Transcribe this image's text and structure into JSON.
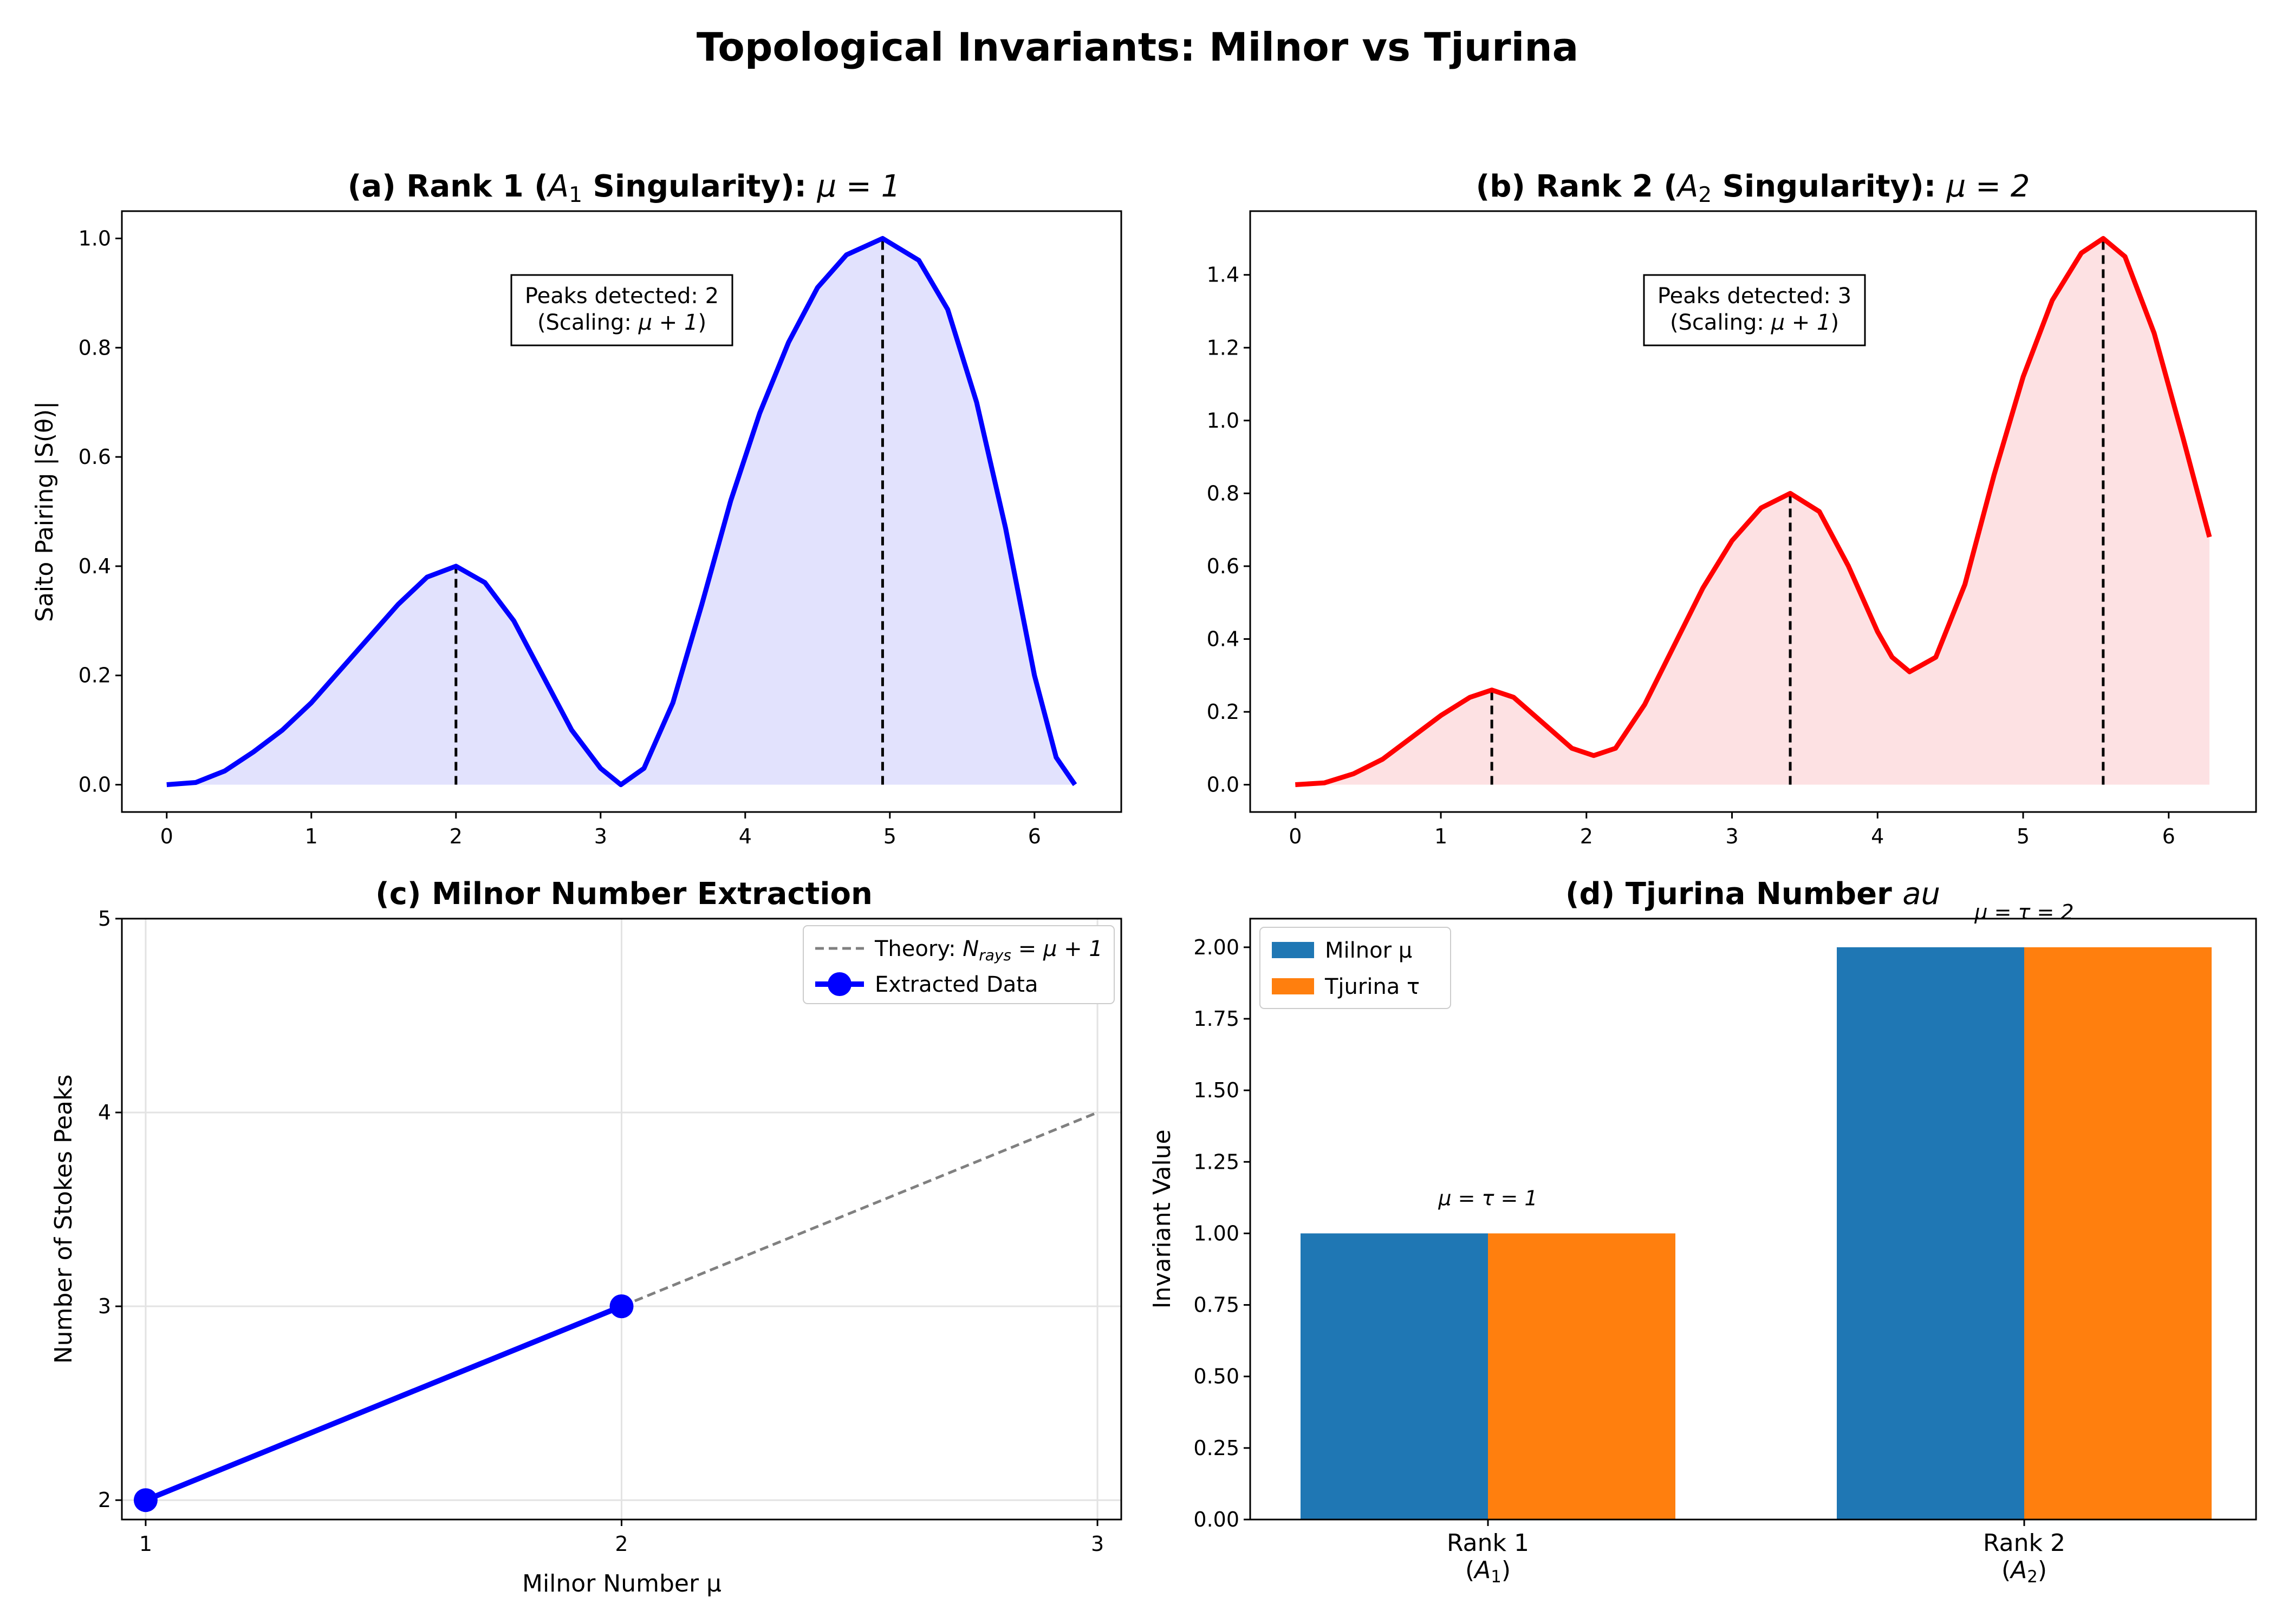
{
  "figure": {
    "title": "Topological Invariants: Milnor vs Tjurina"
  },
  "chart_data": [
    {
      "id": "a",
      "type": "line",
      "title": "(a) Rank 1 (A₁ Singularity): μ = 1",
      "title_parts": {
        "pre": "(a) Rank 1 (",
        "sym": "A",
        "sub": "1",
        "mid": " Singularity): ",
        "eq": "μ = 1"
      },
      "ylabel": "Saito Pairing |S(θ)|",
      "xlim": [
        -0.31,
        6.6
      ],
      "ylim": [
        -0.05,
        1.05
      ],
      "xticks": [
        0,
        1,
        2,
        3,
        4,
        5,
        6
      ],
      "yticks": [
        0.0,
        0.2,
        0.4,
        0.6,
        0.8,
        1.0
      ],
      "ytick_decimals": 1,
      "series": [
        {
          "name": "|S(θ)|",
          "color": "#0000ff",
          "fill": "#e2e2fd",
          "x": [
            0,
            0.2,
            0.4,
            0.6,
            0.8,
            1.0,
            1.2,
            1.4,
            1.6,
            1.8,
            2.0,
            2.2,
            2.4,
            2.6,
            2.8,
            3.0,
            3.14,
            3.3,
            3.5,
            3.7,
            3.9,
            4.1,
            4.3,
            4.5,
            4.7,
            4.95,
            5.2,
            5.4,
            5.6,
            5.8,
            6.0,
            6.15,
            6.28
          ],
          "y": [
            0.0,
            0.004,
            0.025,
            0.06,
            0.1,
            0.15,
            0.21,
            0.27,
            0.33,
            0.38,
            0.4,
            0.37,
            0.3,
            0.2,
            0.1,
            0.03,
            0.0,
            0.03,
            0.15,
            0.33,
            0.52,
            0.68,
            0.81,
            0.91,
            0.97,
            1.0,
            0.96,
            0.87,
            0.7,
            0.47,
            0.2,
            0.05,
            0.0
          ]
        }
      ],
      "peaks": [
        {
          "x": 2.0,
          "y": 0.4
        },
        {
          "x": 4.95,
          "y": 1.0
        }
      ],
      "annotation": {
        "line1": "Peaks detected: 2",
        "line2_pre": "(Scaling: ",
        "line2_eq": "μ + 1",
        "line2_post": ")"
      }
    },
    {
      "id": "b",
      "type": "line",
      "title": "(b) Rank 2 (A₂ Singularity): μ = 2",
      "title_parts": {
        "pre": "(b) Rank 2 (",
        "sym": "A",
        "sub": "2",
        "mid": " Singularity): ",
        "eq": "μ = 2"
      },
      "ylabel": "",
      "xlim": [
        -0.31,
        6.6
      ],
      "ylim": [
        -0.075,
        1.575
      ],
      "xticks": [
        0,
        1,
        2,
        3,
        4,
        5,
        6
      ],
      "yticks": [
        0.0,
        0.2,
        0.4,
        0.6,
        0.8,
        1.0,
        1.2,
        1.4
      ],
      "ytick_decimals": 1,
      "series": [
        {
          "name": "|S(θ)|",
          "color": "#ff0000",
          "fill": "#fde1e3",
          "x": [
            0,
            0.2,
            0.4,
            0.6,
            0.8,
            1.0,
            1.2,
            1.35,
            1.5,
            1.7,
            1.9,
            2.05,
            2.2,
            2.4,
            2.6,
            2.8,
            3.0,
            3.2,
            3.4,
            3.6,
            3.8,
            4.0,
            4.1,
            4.22,
            4.4,
            4.6,
            4.8,
            5.0,
            5.2,
            5.4,
            5.55,
            5.7,
            5.9,
            6.1,
            6.28
          ],
          "y": [
            0.0,
            0.005,
            0.03,
            0.07,
            0.13,
            0.19,
            0.24,
            0.26,
            0.24,
            0.17,
            0.1,
            0.08,
            0.1,
            0.22,
            0.38,
            0.54,
            0.67,
            0.76,
            0.8,
            0.75,
            0.6,
            0.42,
            0.35,
            0.31,
            0.35,
            0.55,
            0.85,
            1.12,
            1.33,
            1.46,
            1.5,
            1.45,
            1.24,
            0.95,
            0.68
          ]
        }
      ],
      "peaks": [
        {
          "x": 1.35,
          "y": 0.26
        },
        {
          "x": 3.4,
          "y": 0.8
        },
        {
          "x": 5.55,
          "y": 1.5
        }
      ],
      "annotation": {
        "line1": "Peaks detected: 3",
        "line2_pre": "(Scaling: ",
        "line2_eq": "μ + 1",
        "line2_post": ")"
      }
    },
    {
      "id": "c",
      "type": "line",
      "title": "(c) Milnor Number Extraction",
      "xlabel": "Milnor Number μ",
      "ylabel": "Number of Stokes Peaks",
      "xlim": [
        0.95,
        3.05
      ],
      "ylim": [
        1.9,
        5.0
      ],
      "xticks": [
        1,
        2,
        3
      ],
      "yticks": [
        2,
        3,
        4,
        5
      ],
      "ytick_decimals": 0,
      "grid": true,
      "legend_position": "top-right",
      "theory": {
        "name": "Theory: N_rays = μ + 1",
        "x": [
          1,
          2,
          3
        ],
        "y": [
          2,
          3,
          4
        ],
        "color": "#808080"
      },
      "extracted": {
        "name": "Extracted Data",
        "x": [
          1,
          2
        ],
        "y": [
          2,
          3
        ],
        "color": "#0000ff"
      },
      "legend": {
        "theory_pre": "Theory: ",
        "theory_sym": "N",
        "theory_sub": "rays",
        "theory_eq": " = μ + 1",
        "extracted": "Extracted Data"
      }
    },
    {
      "id": "d",
      "type": "bar",
      "title": "(d) Tjurina Number au",
      "title_parts": {
        "pre": "(d) Tjurina Number ",
        "eq": "au"
      },
      "ylabel": "Invariant Value",
      "categories": [
        "Rank 1",
        "Rank 2"
      ],
      "category_sublabels": [
        {
          "sym": "A",
          "sub": "1"
        },
        {
          "sym": "A",
          "sub": "2"
        }
      ],
      "ylim": [
        0,
        2.1
      ],
      "yticks": [
        0.0,
        0.25,
        0.5,
        0.75,
        1.0,
        1.25,
        1.5,
        1.75,
        2.0
      ],
      "ytick_decimals": 2,
      "legend_position": "top-left",
      "series": [
        {
          "name": "Milnor μ",
          "values": [
            1,
            2
          ],
          "color": "#1f77b4"
        },
        {
          "name": "Tjurina τ",
          "values": [
            1,
            2
          ],
          "color": "#ff7f0e"
        }
      ],
      "bar_labels": [
        "μ = τ = 1",
        "μ = τ = 2"
      ]
    }
  ]
}
